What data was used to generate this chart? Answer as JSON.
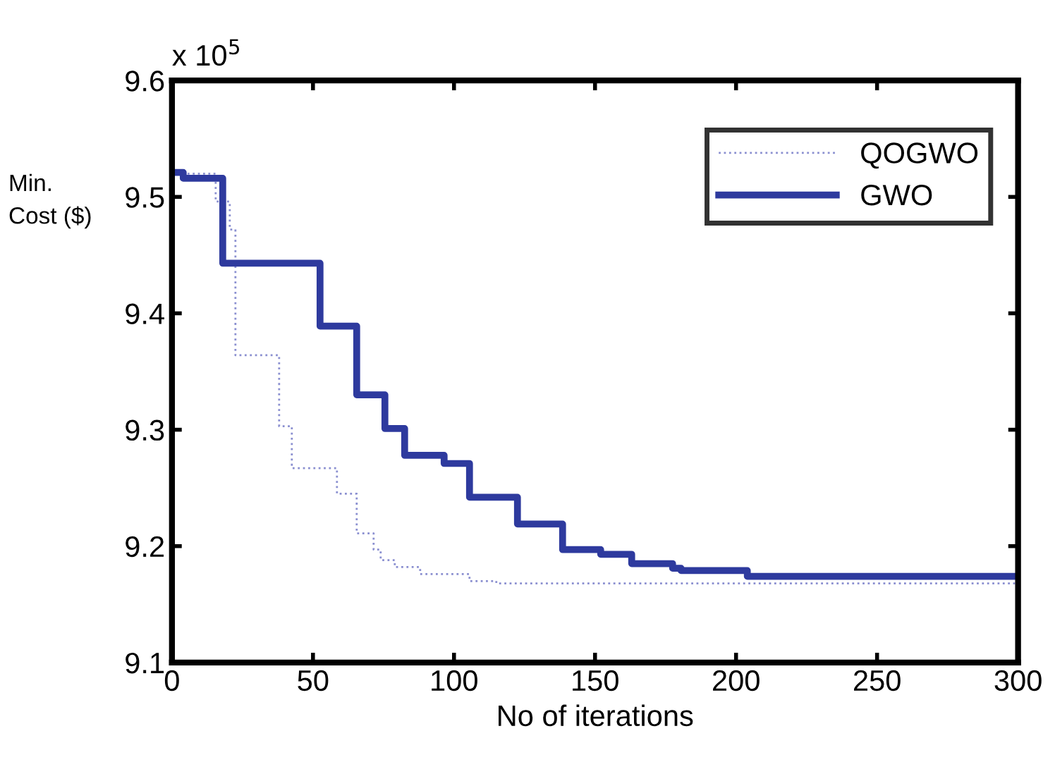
{
  "chart_data": {
    "type": "step",
    "xlabel": "No of iterations",
    "ylabel": "Min.\nCost ($)",
    "annotations": [
      "x 10$^{5}$"
    ],
    "xlim": [
      0,
      300
    ],
    "xticks": [
      0,
      50,
      100,
      150,
      200,
      250,
      300
    ],
    "ylim": [
      9.1,
      9.6
    ],
    "yticks": [
      9.1,
      9.2,
      9.3,
      9.4,
      9.5,
      9.6
    ],
    "grid": false,
    "legend": "top right",
    "series": [
      {
        "name": "QOGWO",
        "color": "#8a8fd0",
        "line_style": "dotted",
        "x": [
          0,
          15.5,
          20.5,
          22.5,
          38,
          42.5,
          58.5,
          65.5,
          71.5,
          74,
          79,
          88,
          105.5,
          115,
          300
        ],
        "values": [
          9.52,
          9.496,
          9.472,
          9.364,
          9.303,
          9.267,
          9.245,
          9.211,
          9.197,
          9.188,
          9.182,
          9.176,
          9.17,
          9.168,
          9.168
        ]
      },
      {
        "name": "GWO",
        "color": "#2e3a9e",
        "line_style": "solid",
        "x": [
          0,
          4,
          18,
          52.5,
          65.5,
          75.5,
          82.5,
          96.5,
          105.5,
          122.5,
          138.5,
          152,
          163,
          177.5,
          180.5,
          204,
          300
        ],
        "values": [
          9.521,
          9.516,
          9.443,
          9.389,
          9.33,
          9.301,
          9.278,
          9.271,
          9.242,
          9.219,
          9.197,
          9.193,
          9.185,
          9.181,
          9.179,
          9.174,
          9.174
        ]
      }
    ]
  }
}
